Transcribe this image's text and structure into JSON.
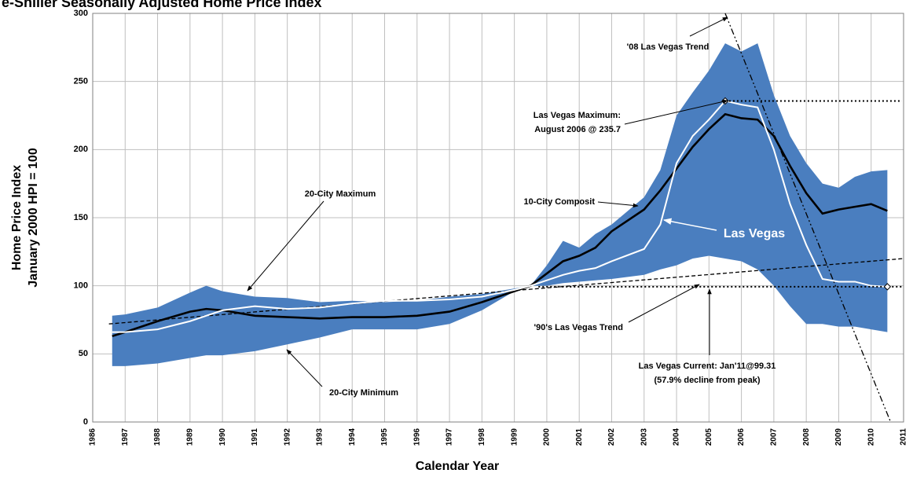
{
  "chart_data": {
    "type": "line",
    "title": "e-Shiller Seasonally Adjusted Home Price Index",
    "xlabel": "Calendar Year",
    "ylabel": [
      "Home Price Index",
      "January 2000 HPI = 100"
    ],
    "xlim": [
      1986,
      2011
    ],
    "ylim": [
      0,
      300
    ],
    "xticks": [
      1986,
      1987,
      1988,
      1989,
      1990,
      1991,
      1992,
      1993,
      1994,
      1995,
      1996,
      1997,
      1998,
      1999,
      2000,
      2001,
      2002,
      2003,
      2004,
      2005,
      2006,
      2007,
      2008,
      2009,
      2010,
      2011
    ],
    "yticks": [
      0,
      50,
      100,
      150,
      200,
      250,
      300
    ],
    "grid": true,
    "x": [
      1986.6,
      1987,
      1988,
      1989,
      1989.5,
      1990,
      1991,
      1992,
      1993,
      1994,
      1995,
      1996,
      1997,
      1998,
      1999,
      1999.5,
      2000,
      2000.5,
      2001,
      2001.5,
      2002,
      2003,
      2003.5,
      2004,
      2004.5,
      2005,
      2005.5,
      2006,
      2006.5,
      2007,
      2007.5,
      2008,
      2008.5,
      2009,
      2009.5,
      2010,
      2010.5
    ],
    "series": [
      {
        "name": "20-City Maximum",
        "kind": "band",
        "color": "#4a7ebf",
        "values": [
          78,
          79,
          84,
          95,
          100,
          96,
          92,
          91,
          88,
          89,
          88,
          89,
          92,
          94,
          98,
          100,
          115,
          133,
          128,
          138,
          145,
          165,
          185,
          225,
          242,
          258,
          278,
          272,
          278,
          240,
          210,
          190,
          175,
          172,
          180,
          184,
          185
        ]
      },
      {
        "name": "20-City Minimum",
        "kind": "band",
        "color": "#4a7ebf",
        "values": [
          41,
          41,
          43,
          47,
          49,
          49,
          52,
          57,
          62,
          68,
          68,
          68,
          72,
          82,
          96,
          100,
          100,
          102,
          103,
          104,
          105,
          108,
          112,
          115,
          120,
          122,
          120,
          118,
          112,
          100,
          85,
          72,
          72,
          70,
          70,
          68,
          66
        ]
      },
      {
        "name": "10-City Composit",
        "kind": "line",
        "color": "#000000",
        "values": [
          63,
          66,
          74,
          81,
          83,
          82,
          78,
          77,
          76,
          77,
          77,
          78,
          81,
          88,
          96,
          100,
          109,
          118,
          122,
          128,
          140,
          156,
          170,
          186,
          202,
          215,
          226,
          223,
          222,
          210,
          188,
          168,
          153,
          156,
          158,
          160,
          155
        ]
      },
      {
        "name": "Las Vegas",
        "kind": "line",
        "color": "#ffffff",
        "values": [
          66,
          66,
          68,
          74,
          78,
          82,
          85,
          83,
          84,
          87,
          89,
          89,
          90,
          92,
          97,
          100,
          104,
          108,
          111,
          113,
          118,
          127,
          145,
          190,
          210,
          222,
          235.7,
          233,
          231,
          200,
          160,
          130,
          105,
          103,
          103,
          100,
          99.31
        ]
      }
    ],
    "trend_lines": [
      {
        "name": "'90's Las Vegas Trend",
        "x": [
          1986.5,
          2011
        ],
        "values": [
          72,
          120
        ]
      },
      {
        "name": "'08 Las Vegas Trend",
        "x": [
          2005.5,
          2010.6
        ],
        "values": [
          300,
          0
        ]
      }
    ],
    "annotations": [
      [
        "Las Vegas Maximum:",
        "August 2006 @ 235.7"
      ],
      [
        "Las Vegas Current: Jan'11@99.31",
        "(57.9% decline from peak)"
      ]
    ]
  }
}
